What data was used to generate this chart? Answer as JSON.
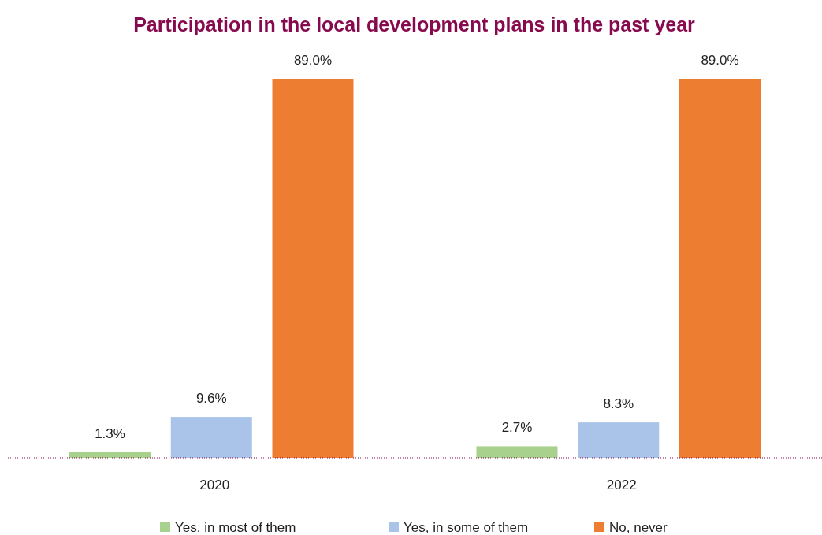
{
  "chart_data": {
    "type": "bar",
    "title": "Participation in the local development plans in the past year",
    "categories": [
      "2020",
      "2022"
    ],
    "series": [
      {
        "name": "Yes, in most of them",
        "color": "#a9d18e",
        "values": [
          1.3,
          2.7
        ],
        "value_labels": [
          "1.3%",
          "2.7%"
        ]
      },
      {
        "name": "Yes, in some of them",
        "color": "#a9c4e8",
        "values": [
          9.6,
          8.3
        ],
        "value_labels": [
          "9.6%",
          "8.3%"
        ]
      },
      {
        "name": "No, never",
        "color": "#ed7d31",
        "values": [
          89.0,
          89.0
        ],
        "value_labels": [
          "89.0%",
          "89.0%"
        ]
      }
    ],
    "legend": "bottom"
  }
}
